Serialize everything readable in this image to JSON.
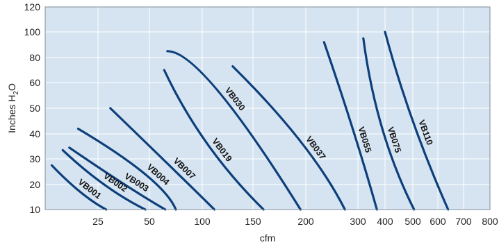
{
  "chart_data": {
    "type": "line",
    "xlabel": "cfm",
    "ylabel_main": "Inches H",
    "ylabel_sub": "2",
    "ylabel_end": "O",
    "x_ticks": [
      {
        "label": "25",
        "value": 25
      },
      {
        "label": "50",
        "value": 50
      },
      {
        "label": "100",
        "value": 100
      },
      {
        "label": "150",
        "value": 150
      },
      {
        "label": "200",
        "value": 200
      },
      {
        "label": "300",
        "value": 300
      },
      {
        "label": "400",
        "value": 400
      },
      {
        "label": "500",
        "value": 500
      },
      {
        "label": "600",
        "value": 600
      },
      {
        "label": "700",
        "value": 700
      },
      {
        "label": "800",
        "value": 800
      }
    ],
    "y_ticks": [
      {
        "label": "10",
        "value": 10
      },
      {
        "label": "20",
        "value": 20
      },
      {
        "label": "30",
        "value": 30
      },
      {
        "label": "40",
        "value": 40
      },
      {
        "label": "50",
        "value": 50
      },
      {
        "label": "60",
        "value": 60
      },
      {
        "label": "80",
        "value": 80
      },
      {
        "label": "100",
        "value": 100
      },
      {
        "label": "120",
        "value": 120
      }
    ],
    "grid": true,
    "series_color": "#0d3f7a",
    "series": [
      {
        "name": "VB001",
        "points": [
          [
            4,
            27.5
          ],
          [
            17,
            17
          ],
          [
            29,
            10
          ]
        ]
      },
      {
        "name": "VB002",
        "points": [
          [
            9,
            33.5
          ],
          [
            28,
            20
          ],
          [
            48,
            10
          ]
        ]
      },
      {
        "name": "VB003",
        "points": [
          [
            12,
            34.5
          ],
          [
            38,
            20
          ],
          [
            65,
            10
          ]
        ]
      },
      {
        "name": "VB004",
        "points": [
          [
            16,
            42
          ],
          [
            48,
            24
          ],
          [
            75,
            10
          ]
        ]
      },
      {
        "name": "VB007",
        "points": [
          [
            31,
            50
          ],
          [
            70,
            27
          ],
          [
            112,
            10
          ]
        ]
      },
      {
        "name": "VB019",
        "points": [
          [
            64,
            70
          ],
          [
            105,
            36
          ],
          [
            160,
            10
          ]
        ]
      },
      {
        "name": "VB030",
        "points": [
          [
            67,
            85
          ],
          [
            115,
            57
          ],
          [
            195,
            10
          ]
        ]
      },
      {
        "name": "VB037",
        "points": [
          [
            130,
            73
          ],
          [
            195,
            37
          ],
          [
            275,
            10
          ]
        ]
      },
      {
        "name": "VB055",
        "points": [
          [
            235,
            92
          ],
          [
            290,
            42
          ],
          [
            370,
            10
          ]
        ]
      },
      {
        "name": "VB075",
        "points": [
          [
            320,
            95
          ],
          [
            390,
            42
          ],
          [
            505,
            10
          ]
        ]
      },
      {
        "name": "VB110",
        "points": [
          [
            400,
            100
          ],
          [
            500,
            45
          ],
          [
            640,
            10
          ]
        ]
      }
    ]
  }
}
